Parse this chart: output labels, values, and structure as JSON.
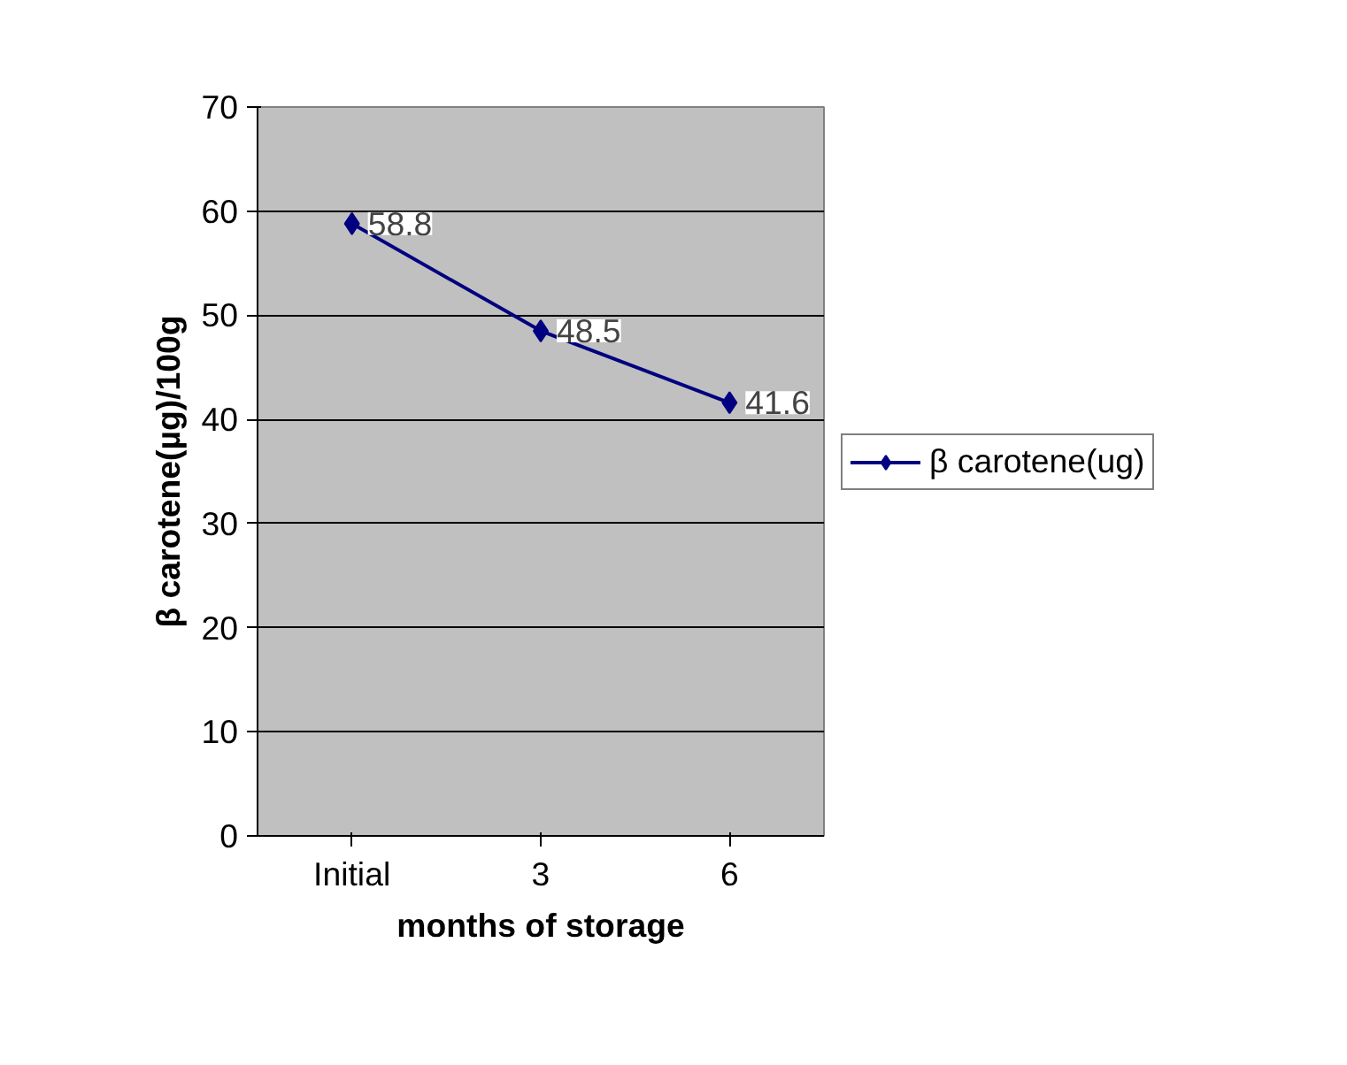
{
  "chart_data": {
    "type": "line",
    "xlabel": "months of storage",
    "ylabel": "β carotene(µg)/100g",
    "categories": [
      "Initial",
      "3",
      "6"
    ],
    "series": [
      {
        "name": "β carotene(ug)",
        "color": "#000080",
        "values": [
          58.8,
          48.5,
          41.6
        ]
      }
    ],
    "ylim": [
      0,
      70
    ],
    "yticks": [
      0,
      10,
      20,
      30,
      40,
      50,
      60,
      70
    ],
    "grid": "y",
    "legend": "right",
    "marker": "diamond",
    "line_style": "solid",
    "data_labels": true
  }
}
